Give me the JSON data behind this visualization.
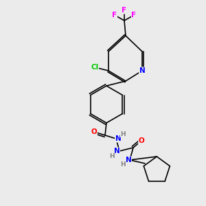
{
  "bg_color": "#ebebeb",
  "bond_color": "#000000",
  "atom_colors": {
    "F": "#ff00ff",
    "Cl": "#00cc00",
    "N": "#0000ff",
    "O": "#ff0000",
    "C": "#000000",
    "H": "#808080"
  },
  "font_size": 7.5,
  "bond_width": 1.2
}
